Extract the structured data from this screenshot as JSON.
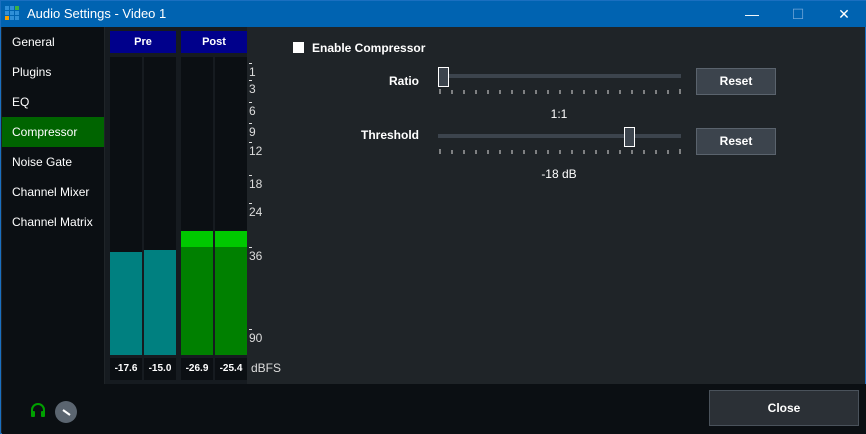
{
  "window": {
    "title": "Audio Settings - Video 1",
    "minimize": "—",
    "maximize": "☐",
    "close": "✕"
  },
  "sidebar": {
    "items": [
      {
        "label": "General"
      },
      {
        "label": "Plugins"
      },
      {
        "label": "EQ"
      },
      {
        "label": "Compressor",
        "selected": true
      },
      {
        "label": "Noise Gate"
      },
      {
        "label": "Channel Mixer"
      },
      {
        "label": "Channel Matrix"
      }
    ]
  },
  "meters": {
    "pre_label": "Pre",
    "post_label": "Post",
    "unit": "dBFS",
    "scale": [
      "1",
      "3",
      "6",
      "9",
      "12",
      "18",
      "24",
      "36",
      "90"
    ],
    "pre": [
      {
        "value": "-17.6",
        "level": 0.345
      },
      {
        "value": "-15.0",
        "level": 0.352
      }
    ],
    "post": [
      {
        "value": "-26.9",
        "level": 0.415,
        "peak_level": 0.36
      },
      {
        "value": "-25.4",
        "level": 0.415,
        "peak_level": 0.36
      }
    ],
    "colors": {
      "pre": "#008080",
      "post": "#008000",
      "post_peak": "#00c800"
    }
  },
  "compressor": {
    "enable_label": "Enable Compressor",
    "enabled": false,
    "ratio": {
      "label": "Ratio",
      "value": "1:1",
      "position": 0,
      "reset": "Reset"
    },
    "threshold": {
      "label": "Threshold",
      "value": "-18 dB",
      "position": 0.8,
      "reset": "Reset"
    }
  },
  "footer": {
    "close": "Close",
    "headphones_icon": "headphones-icon",
    "volume_knob": "volume-knob"
  }
}
